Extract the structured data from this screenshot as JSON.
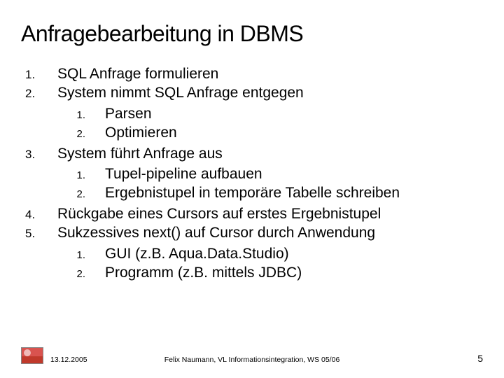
{
  "title": "Anfragebearbeitung in DBMS",
  "items": [
    {
      "level": 1,
      "num": "1.",
      "text": "SQL Anfrage formulieren"
    },
    {
      "level": 1,
      "num": "2.",
      "text": "System nimmt SQL Anfrage entgegen"
    },
    {
      "level": 2,
      "num": "1.",
      "text": "Parsen"
    },
    {
      "level": 2,
      "num": "2.",
      "text": "Optimieren"
    },
    {
      "level": 1,
      "num": "3.",
      "text": "System führt Anfrage aus"
    },
    {
      "level": 2,
      "num": "1.",
      "text": "Tupel-pipeline aufbauen"
    },
    {
      "level": 2,
      "num": "2.",
      "text": "Ergebnistupel in temporäre Tabelle schreiben"
    },
    {
      "level": 1,
      "num": "4.",
      "text": "Rückgabe eines Cursors auf erstes Ergebnistupel"
    },
    {
      "level": 1,
      "num": "5.",
      "text": "Sukzessives next() auf Cursor durch Anwendung"
    },
    {
      "level": 2,
      "num": "1.",
      "text": "GUI (z.B. Aqua.Data.Studio)"
    },
    {
      "level": 2,
      "num": "2.",
      "text": "Programm (z.B. mittels JDBC)"
    }
  ],
  "footer": {
    "date": "13.12.2005",
    "center": "Felix Naumann, VL Informationsintegration, WS 05/06",
    "page": "5"
  },
  "colors": {
    "text": "#000000",
    "background": "#ffffff",
    "logo_top": "#d9534f",
    "logo_bottom": "#c0392b"
  },
  "fontsize": {
    "title": 32,
    "body": 21,
    "num_l1": 17,
    "num_l2": 15,
    "footer": 10.5,
    "page": 14
  }
}
